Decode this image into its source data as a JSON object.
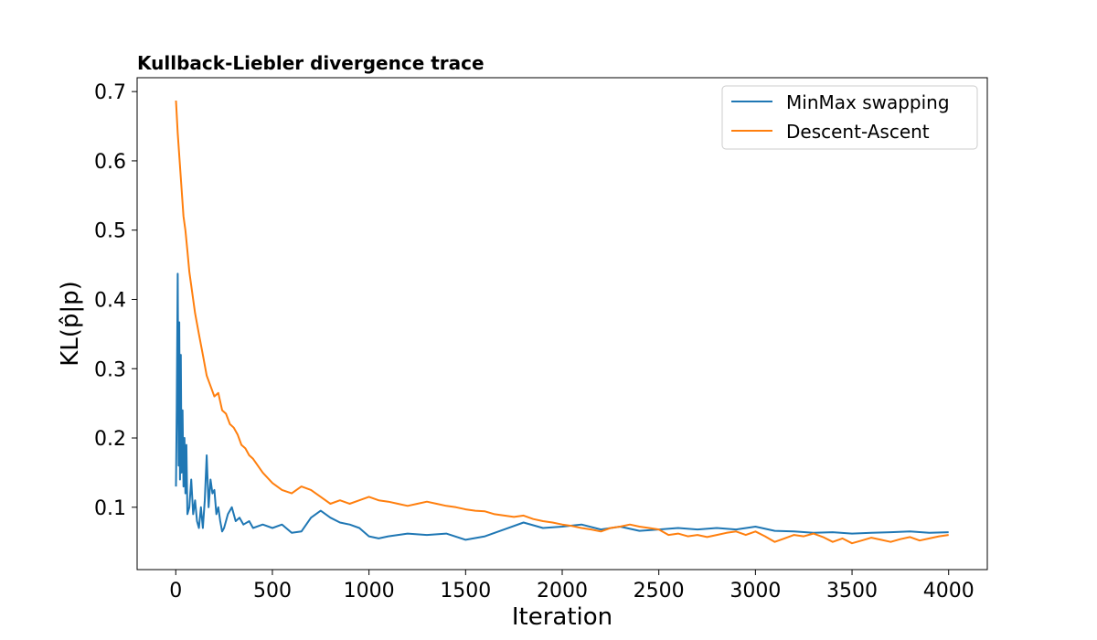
{
  "chart_data": {
    "type": "line",
    "title": "Kullback-Liebler divergence trace",
    "xlabel": "Iteration",
    "ylabel": "KL(p̂|p)",
    "xlim": [
      -200,
      4200
    ],
    "ylim": [
      0.01,
      0.72
    ],
    "xticks": [
      0,
      500,
      1000,
      1500,
      2000,
      2500,
      3000,
      3500,
      4000
    ],
    "yticks": [
      0.1,
      0.2,
      0.3,
      0.4,
      0.5,
      0.6,
      0.7
    ],
    "xtick_labels": [
      "0",
      "500",
      "1000",
      "1500",
      "2000",
      "2500",
      "3000",
      "3500",
      "4000"
    ],
    "ytick_labels": [
      "0.1",
      "0.2",
      "0.3",
      "0.4",
      "0.5",
      "0.6",
      "0.7"
    ],
    "grid": false,
    "legend_position": "top-right",
    "legend": [
      "MinMax swapping",
      "Descent-Ascent"
    ],
    "series": [
      {
        "name": "MinMax swapping",
        "color": "#1f77b4",
        "x": [
          1,
          5,
          10,
          15,
          18,
          22,
          26,
          30,
          35,
          40,
          45,
          50,
          55,
          60,
          70,
          80,
          90,
          100,
          110,
          120,
          130,
          140,
          150,
          160,
          170,
          180,
          190,
          200,
          210,
          220,
          230,
          240,
          250,
          270,
          290,
          310,
          330,
          350,
          380,
          400,
          450,
          500,
          550,
          600,
          650,
          700,
          750,
          800,
          850,
          900,
          950,
          1000,
          1050,
          1100,
          1200,
          1300,
          1400,
          1500,
          1600,
          1700,
          1800,
          1900,
          2000,
          2100,
          2200,
          2300,
          2400,
          2500,
          2600,
          2700,
          2800,
          2900,
          3000,
          3100,
          3200,
          3300,
          3400,
          3500,
          3600,
          3700,
          3800,
          3900,
          4000
        ],
        "values": [
          0.13,
          0.24,
          0.437,
          0.16,
          0.367,
          0.14,
          0.32,
          0.15,
          0.24,
          0.13,
          0.2,
          0.12,
          0.19,
          0.09,
          0.1,
          0.14,
          0.09,
          0.11,
          0.08,
          0.07,
          0.1,
          0.07,
          0.11,
          0.175,
          0.1,
          0.14,
          0.12,
          0.125,
          0.09,
          0.1,
          0.08,
          0.065,
          0.07,
          0.09,
          0.1,
          0.08,
          0.085,
          0.075,
          0.08,
          0.07,
          0.075,
          0.07,
          0.075,
          0.063,
          0.065,
          0.085,
          0.095,
          0.085,
          0.078,
          0.075,
          0.07,
          0.058,
          0.055,
          0.058,
          0.062,
          0.06,
          0.062,
          0.053,
          0.058,
          0.068,
          0.078,
          0.07,
          0.072,
          0.075,
          0.068,
          0.072,
          0.066,
          0.068,
          0.07,
          0.068,
          0.07,
          0.068,
          0.072,
          0.066,
          0.065,
          0.063,
          0.064,
          0.062,
          0.063,
          0.064,
          0.065,
          0.063,
          0.064
        ]
      },
      {
        "name": "Descent-Ascent",
        "color": "#ff7f0e",
        "x": [
          1,
          10,
          20,
          30,
          40,
          50,
          60,
          70,
          80,
          90,
          100,
          120,
          140,
          160,
          180,
          200,
          220,
          240,
          260,
          280,
          300,
          320,
          340,
          360,
          380,
          400,
          450,
          500,
          550,
          600,
          650,
          700,
          750,
          800,
          850,
          900,
          950,
          1000,
          1050,
          1100,
          1150,
          1200,
          1250,
          1300,
          1350,
          1400,
          1450,
          1500,
          1550,
          1600,
          1650,
          1700,
          1750,
          1800,
          1850,
          1900,
          1950,
          2000,
          2050,
          2100,
          2150,
          2200,
          2250,
          2300,
          2350,
          2400,
          2450,
          2500,
          2550,
          2600,
          2650,
          2700,
          2750,
          2800,
          2850,
          2900,
          2950,
          3000,
          3050,
          3100,
          3150,
          3200,
          3250,
          3300,
          3350,
          3400,
          3450,
          3500,
          3550,
          3600,
          3650,
          3700,
          3750,
          3800,
          3850,
          3900,
          3950,
          4000
        ],
        "values": [
          0.687,
          0.64,
          0.6,
          0.56,
          0.52,
          0.5,
          0.47,
          0.44,
          0.42,
          0.4,
          0.38,
          0.35,
          0.32,
          0.29,
          0.275,
          0.26,
          0.265,
          0.24,
          0.235,
          0.22,
          0.215,
          0.205,
          0.19,
          0.185,
          0.175,
          0.17,
          0.15,
          0.135,
          0.125,
          0.12,
          0.13,
          0.125,
          0.115,
          0.105,
          0.11,
          0.105,
          0.11,
          0.115,
          0.11,
          0.108,
          0.105,
          0.102,
          0.105,
          0.108,
          0.105,
          0.102,
          0.1,
          0.097,
          0.095,
          0.094,
          0.09,
          0.088,
          0.086,
          0.088,
          0.083,
          0.08,
          0.078,
          0.075,
          0.073,
          0.07,
          0.068,
          0.065,
          0.07,
          0.072,
          0.075,
          0.072,
          0.07,
          0.068,
          0.06,
          0.062,
          0.058,
          0.06,
          0.057,
          0.06,
          0.063,
          0.065,
          0.06,
          0.065,
          0.058,
          0.05,
          0.055,
          0.06,
          0.058,
          0.062,
          0.057,
          0.05,
          0.055,
          0.048,
          0.052,
          0.056,
          0.053,
          0.05,
          0.054,
          0.057,
          0.052,
          0.055,
          0.058,
          0.06
        ]
      }
    ]
  }
}
